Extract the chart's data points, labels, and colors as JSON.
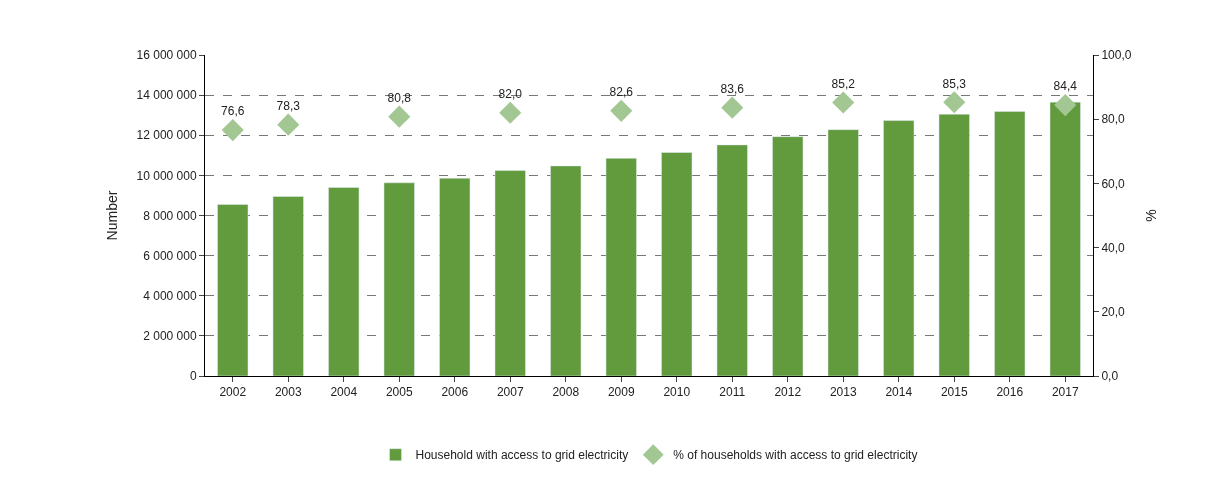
{
  "chart_data": {
    "type": "bar",
    "ylabel": "Number",
    "y2label": "%",
    "categories": [
      "2002",
      "2003",
      "2004",
      "2005",
      "2006",
      "2007",
      "2008",
      "2009",
      "2010",
      "2011",
      "2012",
      "2013",
      "2014",
      "2015",
      "2016",
      "2017"
    ],
    "series": [
      {
        "name": "Household with access to grid electricity",
        "color": "#629a3e",
        "values": [
          8550000,
          8950000,
          9400000,
          9630000,
          9860000,
          10240000,
          10470000,
          10850000,
          11140000,
          11520000,
          11930000,
          12280000,
          12730000,
          13050000,
          13190000,
          13650000
        ]
      },
      {
        "name": "% of households with access to grid electricity",
        "type": "scatter",
        "axis": "y2",
        "marker": "diamond",
        "color": "#a3c793",
        "values": [
          76.6,
          78.3,
          null,
          80.8,
          null,
          82.0,
          null,
          82.6,
          null,
          83.6,
          null,
          85.2,
          null,
          85.3,
          null,
          84.4
        ],
        "value_labels": [
          "76,6",
          "78,3",
          null,
          "80,8",
          null,
          "82,0",
          null,
          "82,6",
          null,
          "83,6",
          null,
          "85,2",
          null,
          "85,3",
          null,
          "84,4"
        ]
      }
    ],
    "ylim": [
      0,
      16000000
    ],
    "yticks": [
      0,
      {
        "value": 2000000,
        "label": "2 000 000"
      },
      {
        "value": 4000000,
        "label": "4 000 000"
      },
      {
        "value": 6000000,
        "label": "6 000 000"
      },
      {
        "value": 8000000,
        "label": "8 000 000"
      },
      {
        "value": 10000000,
        "label": "10 000 000"
      },
      {
        "value": 12000000,
        "label": "12 000 000"
      },
      {
        "value": 14000000,
        "label": "14 000 000"
      },
      {
        "value": 16000000,
        "label": "16 000 000"
      }
    ],
    "y2lim": [
      0,
      100
    ],
    "y2ticks": [
      {
        "value": 0,
        "label": "0,0"
      },
      {
        "value": 20,
        "label": "20,0"
      },
      {
        "value": 40,
        "label": "40,0"
      },
      {
        "value": 60,
        "label": "60,0"
      },
      {
        "value": 80,
        "label": "80,0"
      },
      {
        "value": 100,
        "label": "100,0"
      }
    ],
    "grid": "y",
    "legend": "bottom"
  }
}
